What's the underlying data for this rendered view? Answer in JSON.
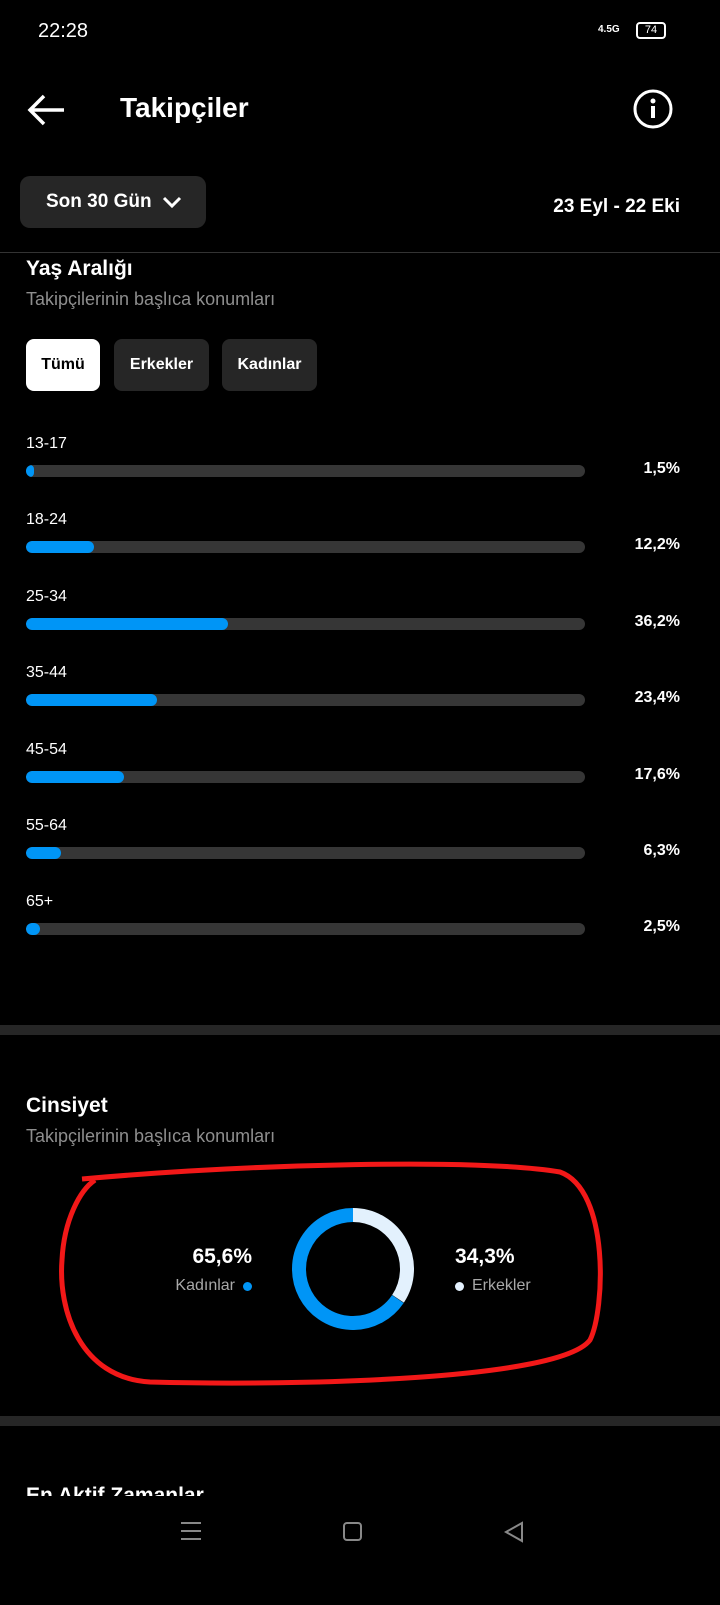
{
  "status_bar": {
    "time": "22:28",
    "network": "4.5G",
    "battery": "74"
  },
  "header": {
    "title": "Takipçiler"
  },
  "period": {
    "button": "Son 30 Gün",
    "range": "23 Eyl - 22 Eki"
  },
  "age": {
    "title": "Yaş Aralığı",
    "subtitle": "Takipçilerinin başlıca konumları",
    "tabs": [
      "Tümü",
      "Erkekler",
      "Kadınlar"
    ],
    "xlim": [
      0,
      100
    ],
    "color": "#0095f6",
    "categories": [
      "13-17",
      "18-24",
      "25-34",
      "35-44",
      "45-54",
      "55-64",
      "65+"
    ],
    "values": [
      1.5,
      12.2,
      36.2,
      23.4,
      17.6,
      6.3,
      2.5
    ],
    "value_labels": [
      "1,5%",
      "12,2%",
      "36,2%",
      "23,4%",
      "17,6%",
      "6,3%",
      "2,5%"
    ]
  },
  "gender": {
    "title": "Cinsiyet",
    "subtitle": "Takipçilerinin başlıca konumları",
    "series": [
      {
        "name": "Kadınlar",
        "value": 65.6,
        "value_label": "65,6%",
        "color": "#0095f6"
      },
      {
        "name": "Erkekler",
        "value": 34.3,
        "value_label": "34,3%",
        "color": "#e3f1fd"
      }
    ]
  },
  "next_section": {
    "title": "En Aktif Zamanlar"
  }
}
